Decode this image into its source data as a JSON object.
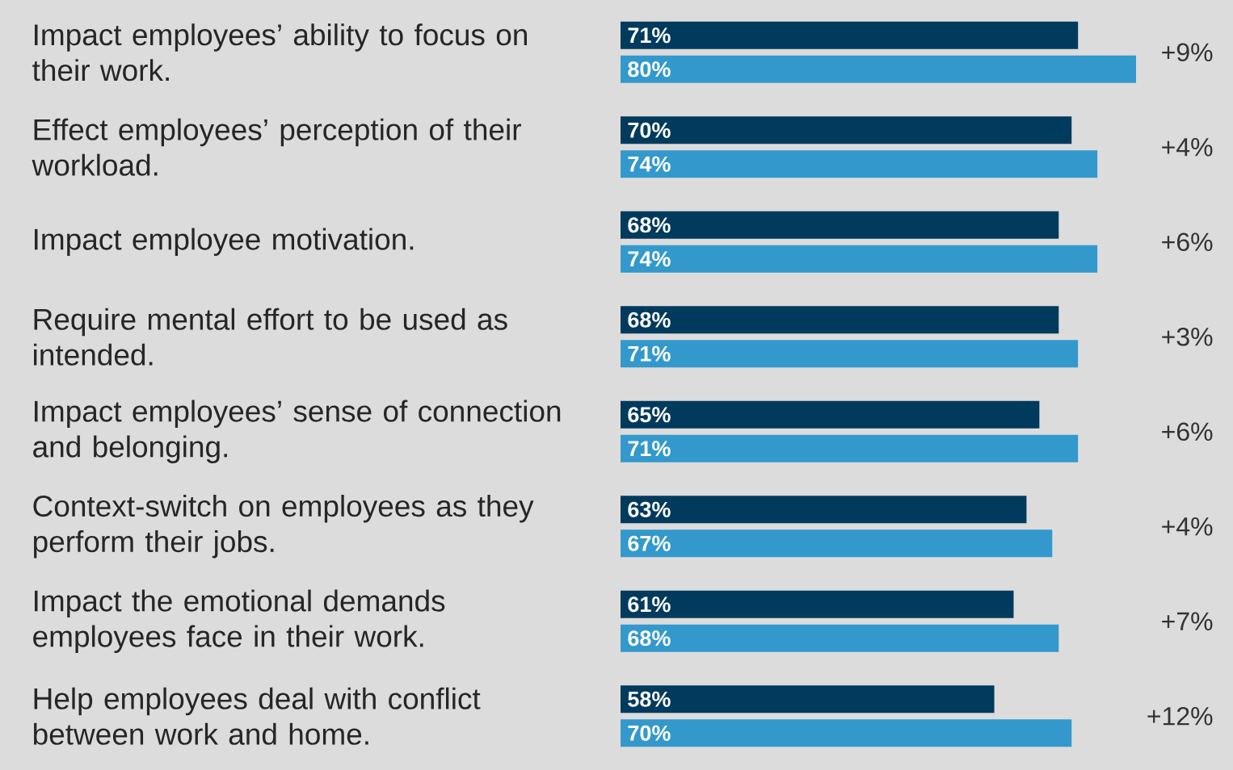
{
  "chart_data": {
    "type": "bar",
    "orientation": "horizontal",
    "categories": [
      "Impact employees’ ability to focus on their work.",
      "Effect employees’ perception of their workload.",
      "Impact employee motivation.",
      "Require mental effort to be used as intended.",
      "Impact employees’ sense of connection and belonging.",
      "Context-switch on employees as they perform their jobs.",
      "Impact the emotional demands employees face in their work.",
      "Help employees deal with conflict between work and home."
    ],
    "series": [
      {
        "color": "#003a5d",
        "values": [
          71,
          70,
          68,
          68,
          65,
          63,
          61,
          58
        ],
        "value_labels": [
          "71%",
          "70%",
          "68%",
          "68%",
          "65%",
          "63%",
          "61%",
          "58%"
        ]
      },
      {
        "color": "#3399cc",
        "values": [
          80,
          74,
          74,
          71,
          71,
          67,
          68,
          70
        ],
        "value_labels": [
          "80%",
          "74%",
          "74%",
          "71%",
          "71%",
          "67%",
          "68%",
          "70%"
        ]
      }
    ],
    "annotations": [
      "+9%",
      "+4%",
      "+6%",
      "+3%",
      "+6%",
      "+4%",
      "+7%",
      "+12%"
    ],
    "tick_labels": "y"
  }
}
